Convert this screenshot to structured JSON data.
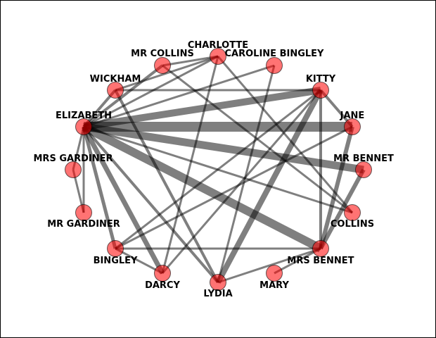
{
  "colors": {
    "edge": "#000000",
    "node_fill": "#ff0000",
    "node_stroke": "#000000",
    "label": "#000000"
  },
  "nodes": [
    {
      "id": "CHARLOTTE",
      "label": "CHARLOTTE"
    },
    {
      "id": "CAROLINE BINGLEY",
      "label": "CAROLINE BINGLEY"
    },
    {
      "id": "KITTY",
      "label": "KITTY"
    },
    {
      "id": "JANE",
      "label": "JANE"
    },
    {
      "id": "MR BENNET",
      "label": "MR BENNET"
    },
    {
      "id": "COLLINS",
      "label": "COLLINS"
    },
    {
      "id": "MRS BENNET",
      "label": "MRS BENNET"
    },
    {
      "id": "MARY",
      "label": "MARY"
    },
    {
      "id": "LYDIA",
      "label": "LYDIA"
    },
    {
      "id": "DARCY",
      "label": "DARCY"
    },
    {
      "id": "BINGLEY",
      "label": "BINGLEY"
    },
    {
      "id": "MR GARDINER",
      "label": "MR GARDINER"
    },
    {
      "id": "MRS GARDINER",
      "label": "MRS GARDINER"
    },
    {
      "id": "ELIZABETH",
      "label": "ELIZABETH"
    },
    {
      "id": "WICKHAM",
      "label": "WICKHAM"
    },
    {
      "id": "MR COLLINS",
      "label": "MR COLLINS"
    }
  ],
  "edges": [
    {
      "source": "ELIZABETH",
      "target": "JANE",
      "weight": 14
    },
    {
      "source": "ELIZABETH",
      "target": "MRS BENNET",
      "weight": 12
    },
    {
      "source": "ELIZABETH",
      "target": "MR BENNET",
      "weight": 11
    },
    {
      "source": "ELIZABETH",
      "target": "KITTY",
      "weight": 10
    },
    {
      "source": "ELIZABETH",
      "target": "DARCY",
      "weight": 7
    },
    {
      "source": "ELIZABETH",
      "target": "BINGLEY",
      "weight": 5
    },
    {
      "source": "ELIZABETH",
      "target": "LYDIA",
      "weight": 4
    },
    {
      "source": "ELIZABETH",
      "target": "WICKHAM",
      "weight": 4
    },
    {
      "source": "ELIZABETH",
      "target": "MR COLLINS",
      "weight": 4
    },
    {
      "source": "ELIZABETH",
      "target": "CHARLOTTE",
      "weight": 3
    },
    {
      "source": "ELIZABETH",
      "target": "MRS GARDINER",
      "weight": 3
    },
    {
      "source": "ELIZABETH",
      "target": "MR GARDINER",
      "weight": 3
    },
    {
      "source": "ELIZABETH",
      "target": "COLLINS",
      "weight": 3
    },
    {
      "source": "MRS GARDINER",
      "target": "MR GARDINER",
      "weight": 3
    },
    {
      "source": "KITTY",
      "target": "LYDIA",
      "weight": 8
    },
    {
      "source": "KITTY",
      "target": "JANE",
      "weight": 4
    },
    {
      "source": "KITTY",
      "target": "MRS BENNET",
      "weight": 4
    },
    {
      "source": "KITTY",
      "target": "BINGLEY",
      "weight": 3
    },
    {
      "source": "KITTY",
      "target": "WICKHAM",
      "weight": 3
    },
    {
      "source": "KITTY",
      "target": "DARCY",
      "weight": 3
    },
    {
      "source": "JANE",
      "target": "MRS BENNET",
      "weight": 6
    },
    {
      "source": "JANE",
      "target": "BINGLEY",
      "weight": 3
    },
    {
      "source": "MR BENNET",
      "target": "MRS BENNET",
      "weight": 6
    },
    {
      "source": "MRS BENNET",
      "target": "BINGLEY",
      "weight": 3
    },
    {
      "source": "MRS BENNET",
      "target": "MARY",
      "weight": 3
    },
    {
      "source": "MRS BENNET",
      "target": "LYDIA",
      "weight": 3
    },
    {
      "source": "CHARLOTTE",
      "target": "MR COLLINS",
      "weight": 3
    },
    {
      "source": "CHARLOTTE",
      "target": "WICKHAM",
      "weight": 3
    },
    {
      "source": "CHARLOTTE",
      "target": "COLLINS",
      "weight": 3
    },
    {
      "source": "CHARLOTTE",
      "target": "DARCY",
      "weight": 3
    },
    {
      "source": "CAROLINE BINGLEY",
      "target": "ELIZABETH",
      "weight": 3
    },
    {
      "source": "CAROLINE BINGLEY",
      "target": "LYDIA",
      "weight": 3
    },
    {
      "source": "MR COLLINS",
      "target": "COLLINS",
      "weight": 3
    },
    {
      "source": "WICKHAM",
      "target": "LYDIA",
      "weight": 4
    },
    {
      "source": "BINGLEY",
      "target": "DARCY",
      "weight": 3
    }
  ]
}
